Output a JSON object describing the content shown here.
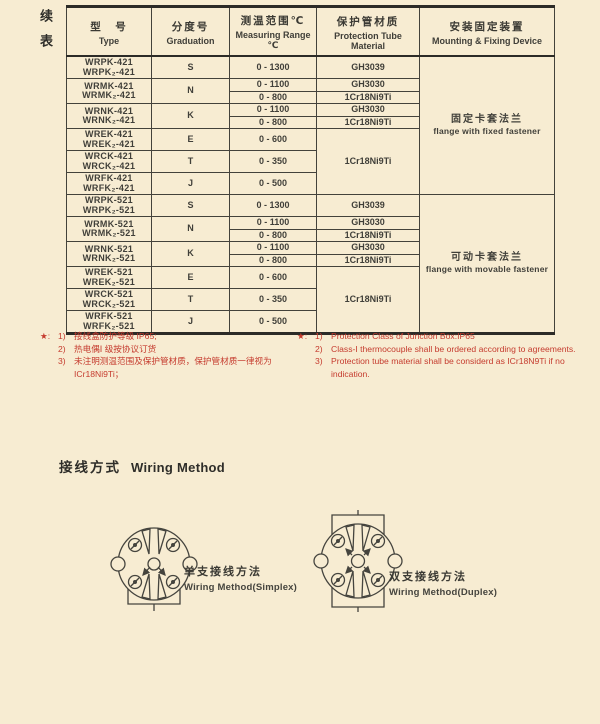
{
  "page": {
    "bg_color": "#f7ecd2",
    "ink_color": "#3f3e38",
    "accent_red": "#c53b2e",
    "continued_label": "续表"
  },
  "table": {
    "headers": [
      {
        "zh": "型　号",
        "en": "Type"
      },
      {
        "zh": "分度号",
        "en": "Graduation"
      },
      {
        "zh": "测温范围℃",
        "en": "Measuring Range ℃"
      },
      {
        "zh": "保护管材质",
        "en": "Protection Tube Material"
      },
      {
        "zh": "安装固定装置",
        "en": "Mounting & Fixing Device"
      }
    ],
    "groups": [
      {
        "mounting": {
          "zh": "固定卡套法兰",
          "en": "flange with fixed fastener"
        },
        "merged_materials": {
          "etj": "1Cr18Ni9Ti"
        },
        "rows": [
          {
            "types": [
              "WRPK-421",
              "WRPK₂-421"
            ],
            "graduation": "S",
            "ranges": [
              {
                "range": "0 - 1300",
                "material": "GH3039"
              }
            ]
          },
          {
            "types": [
              "WRMK-421",
              "WRMK₂-421"
            ],
            "graduation": "N",
            "ranges": [
              {
                "range": "0 - 1100",
                "material": "GH3030"
              },
              {
                "range": "0 - 800",
                "material": "1Cr18Ni9Ti"
              }
            ]
          },
          {
            "types": [
              "WRNK-421",
              "WRNK₂-421"
            ],
            "graduation": "K",
            "ranges": [
              {
                "range": "0 - 1100",
                "material": "GH3030"
              },
              {
                "range": "0 - 800",
                "material": "1Cr18Ni9Ti"
              }
            ]
          },
          {
            "types": [
              "WREK-421",
              "WREK₂-421"
            ],
            "graduation": "E",
            "ranges": [
              {
                "range": "0 - 600"
              }
            ],
            "merge": "etj"
          },
          {
            "types": [
              "WRCK-421",
              "WRCK₂-421"
            ],
            "graduation": "T",
            "ranges": [
              {
                "range": "0 - 350"
              }
            ],
            "merge": "etj"
          },
          {
            "types": [
              "WRFK-421",
              "WRFK₂-421"
            ],
            "graduation": "J",
            "ranges": [
              {
                "range": "0 - 500"
              }
            ],
            "merge": "etj"
          }
        ]
      },
      {
        "mounting": {
          "zh": "可动卡套法兰",
          "en": "flange with movable fastener"
        },
        "merged_materials": {
          "etj": "1Cr18Ni9Ti"
        },
        "rows": [
          {
            "types": [
              "WRPK-521",
              "WRPK₂-521"
            ],
            "graduation": "S",
            "ranges": [
              {
                "range": "0 - 1300",
                "material": "GH3039"
              }
            ]
          },
          {
            "types": [
              "WRMK-521",
              "WRMK₂-521"
            ],
            "graduation": "N",
            "ranges": [
              {
                "range": "0 - 1100",
                "material": "GH3030"
              },
              {
                "range": "0 - 800",
                "material": "1Cr18Ni9Ti"
              }
            ]
          },
          {
            "types": [
              "WRNK-521",
              "WRNK₂-521"
            ],
            "graduation": "K",
            "ranges": [
              {
                "range": "0 - 1100",
                "material": "GH3030"
              },
              {
                "range": "0 - 800",
                "material": "1Cr18Ni9Ti"
              }
            ]
          },
          {
            "types": [
              "WREK-521",
              "WREK₂-521"
            ],
            "graduation": "E",
            "ranges": [
              {
                "range": "0 - 600"
              }
            ],
            "merge": "etj"
          },
          {
            "types": [
              "WRCK-521",
              "WRCK₂-521"
            ],
            "graduation": "T",
            "ranges": [
              {
                "range": "0 - 350"
              }
            ],
            "merge": "etj"
          },
          {
            "types": [
              "WRFK-521",
              "WRFK₂-521"
            ],
            "graduation": "J",
            "ranges": [
              {
                "range": "0 - 500"
              }
            ],
            "merge": "etj"
          }
        ]
      }
    ]
  },
  "notes": {
    "star": "★:",
    "zh": [
      {
        "num": "1)",
        "text": "接线盒防护等级 IP65;"
      },
      {
        "num": "2)",
        "text": "热电偶Ⅰ 级按协议订货"
      },
      {
        "num": "3)",
        "text": "未注明测温范围及保护管材质，保护管材质一律视为 ICr18Ni9Ti；"
      }
    ],
    "en": [
      {
        "num": "1)",
        "text": "Protection Class of Junction Box:IP65"
      },
      {
        "num": "2)",
        "text": "Class-I  thermocouple shall be ordered according to agreements."
      },
      {
        "num": "3)",
        "text": "Protection tube material shall be considerd as ICr18N9Ti if no indication."
      }
    ]
  },
  "wiring": {
    "heading_zh": "接线方式",
    "heading_en": "Wiring Method",
    "simplex": {
      "caption_zh": "单支接线方法",
      "caption_en": "Wiring Method(Simplex)"
    },
    "duplex": {
      "caption_zh": "双支接线方法",
      "caption_en": "Wiring Method(Duplex)"
    }
  }
}
